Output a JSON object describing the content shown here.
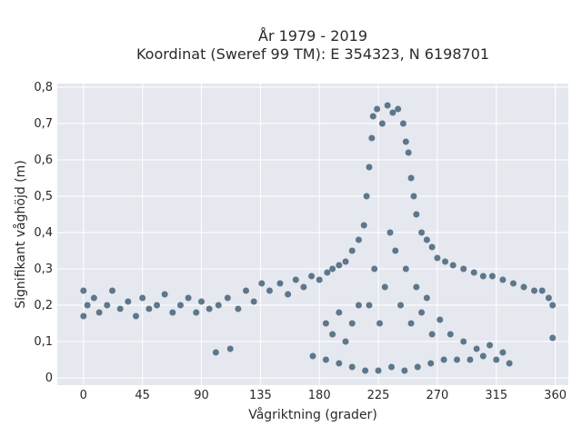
{
  "chart_data": {
    "type": "scatter",
    "title": "År 1979 - 2019",
    "subtitle": "Koordinat (Sweref 99 TM): E 354323, N 6198701",
    "xlabel": "Vågriktning (grader)",
    "ylabel": "Signifikant våghöjd (m)",
    "xlim": [
      -20,
      370
    ],
    "ylim": [
      -0.02,
      0.81
    ],
    "x_ticks": [
      0,
      45,
      90,
      135,
      180,
      225,
      270,
      315,
      360
    ],
    "x_tick_labels": [
      "0",
      "45",
      "90",
      "135",
      "180",
      "225",
      "270",
      "315",
      "360"
    ],
    "y_ticks": [
      0,
      0.1,
      0.2,
      0.3,
      0.4,
      0.5,
      0.6,
      0.7,
      0.8
    ],
    "y_tick_labels": [
      "0",
      "0,1",
      "0,2",
      "0,3",
      "0,4",
      "0,5",
      "0,6",
      "0,7",
      "0,8"
    ],
    "grid": true,
    "legend": "none",
    "colors": {
      "marker": "#2f5068",
      "plot_bg": "#e5e8ef",
      "grid": "#ffffff",
      "text": "#2a2a2a"
    },
    "series": [
      {
        "points": [
          [
            0,
            0.17
          ],
          [
            0,
            0.24
          ],
          [
            3,
            0.2
          ],
          [
            8,
            0.22
          ],
          [
            12,
            0.18
          ],
          [
            18,
            0.2
          ],
          [
            22,
            0.24
          ],
          [
            28,
            0.19
          ],
          [
            34,
            0.21
          ],
          [
            40,
            0.17
          ],
          [
            45,
            0.22
          ],
          [
            50,
            0.19
          ],
          [
            56,
            0.2
          ],
          [
            62,
            0.23
          ],
          [
            68,
            0.18
          ],
          [
            74,
            0.2
          ],
          [
            80,
            0.22
          ],
          [
            86,
            0.18
          ],
          [
            90,
            0.21
          ],
          [
            96,
            0.19
          ],
          [
            101,
            0.07
          ],
          [
            103,
            0.2
          ],
          [
            110,
            0.22
          ],
          [
            112,
            0.08
          ],
          [
            118,
            0.19
          ],
          [
            124,
            0.24
          ],
          [
            130,
            0.21
          ],
          [
            136,
            0.26
          ],
          [
            142,
            0.24
          ],
          [
            150,
            0.26
          ],
          [
            156,
            0.23
          ],
          [
            162,
            0.27
          ],
          [
            168,
            0.25
          ],
          [
            174,
            0.28
          ],
          [
            180,
            0.27
          ],
          [
            186,
            0.29
          ],
          [
            190,
            0.3
          ],
          [
            195,
            0.31
          ],
          [
            200,
            0.32
          ],
          [
            205,
            0.35
          ],
          [
            210,
            0.38
          ],
          [
            214,
            0.42
          ],
          [
            216,
            0.5
          ],
          [
            218,
            0.58
          ],
          [
            220,
            0.66
          ],
          [
            221,
            0.72
          ],
          [
            224,
            0.74
          ],
          [
            228,
            0.7
          ],
          [
            232,
            0.75
          ],
          [
            236,
            0.73
          ],
          [
            240,
            0.74
          ],
          [
            244,
            0.7
          ],
          [
            246,
            0.65
          ],
          [
            248,
            0.62
          ],
          [
            250,
            0.55
          ],
          [
            252,
            0.5
          ],
          [
            254,
            0.45
          ],
          [
            258,
            0.4
          ],
          [
            262,
            0.38
          ],
          [
            266,
            0.36
          ],
          [
            270,
            0.33
          ],
          [
            276,
            0.32
          ],
          [
            282,
            0.31
          ],
          [
            290,
            0.3
          ],
          [
            298,
            0.29
          ],
          [
            305,
            0.28
          ],
          [
            312,
            0.28
          ],
          [
            320,
            0.27
          ],
          [
            328,
            0.26
          ],
          [
            336,
            0.25
          ],
          [
            344,
            0.24
          ],
          [
            350,
            0.24
          ],
          [
            355,
            0.22
          ],
          [
            358,
            0.2
          ],
          [
            358,
            0.11
          ],
          [
            175,
            0.06
          ],
          [
            185,
            0.05
          ],
          [
            195,
            0.04
          ],
          [
            205,
            0.03
          ],
          [
            215,
            0.02
          ],
          [
            225,
            0.02
          ],
          [
            235,
            0.03
          ],
          [
            245,
            0.02
          ],
          [
            255,
            0.03
          ],
          [
            265,
            0.04
          ],
          [
            275,
            0.05
          ],
          [
            285,
            0.05
          ],
          [
            295,
            0.05
          ],
          [
            305,
            0.06
          ],
          [
            315,
            0.05
          ],
          [
            325,
            0.04
          ],
          [
            218,
            0.2
          ],
          [
            222,
            0.3
          ],
          [
            226,
            0.15
          ],
          [
            230,
            0.25
          ],
          [
            234,
            0.4
          ],
          [
            238,
            0.35
          ],
          [
            242,
            0.2
          ],
          [
            246,
            0.3
          ],
          [
            250,
            0.15
          ],
          [
            254,
            0.25
          ],
          [
            258,
            0.18
          ],
          [
            262,
            0.22
          ],
          [
            266,
            0.12
          ],
          [
            272,
            0.16
          ],
          [
            280,
            0.12
          ],
          [
            290,
            0.1
          ],
          [
            300,
            0.08
          ],
          [
            310,
            0.09
          ],
          [
            320,
            0.07
          ],
          [
            200,
            0.1
          ],
          [
            205,
            0.15
          ],
          [
            210,
            0.2
          ],
          [
            190,
            0.12
          ],
          [
            195,
            0.18
          ],
          [
            185,
            0.15
          ]
        ]
      }
    ]
  }
}
